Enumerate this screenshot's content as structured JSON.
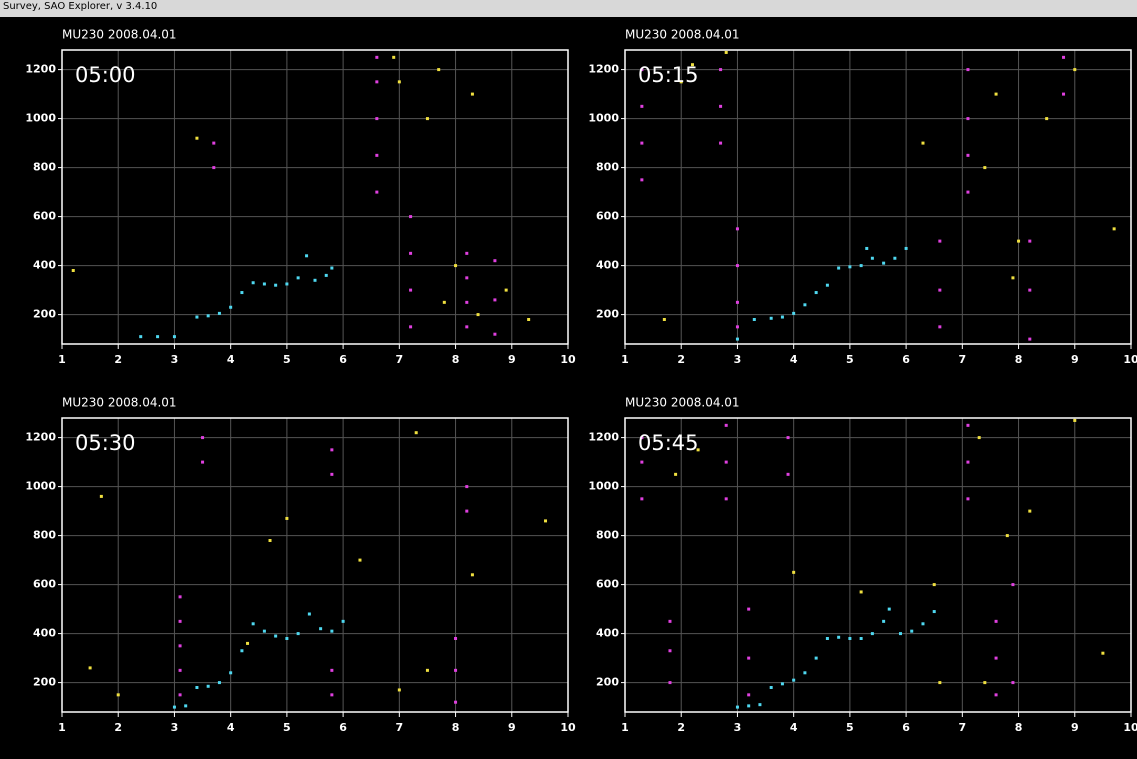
{
  "header": {
    "title": "Survey, SAO Explorer, v 3.4.10"
  },
  "chart_data": [
    {
      "type": "scatter",
      "title": "MU230 2008.04.01",
      "annotation": "05:00",
      "xlim": [
        1,
        10
      ],
      "ylim": [
        80,
        1280
      ],
      "xticks": [
        1,
        2,
        3,
        4,
        5,
        6,
        7,
        8,
        9,
        10
      ],
      "yticks": [
        200,
        400,
        600,
        800,
        1000,
        1200
      ],
      "grid": true,
      "series": [
        {
          "color": "#4fd8f0",
          "x": [
            2.4,
            2.7,
            3.0,
            3.4,
            3.6,
            3.8,
            4.0,
            4.2,
            4.4,
            4.6,
            4.8,
            5.0,
            5.2,
            5.35,
            5.5,
            5.7,
            5.8
          ],
          "y": [
            110,
            110,
            110,
            190,
            195,
            205,
            230,
            290,
            330,
            325,
            320,
            325,
            350,
            440,
            340,
            360,
            390
          ]
        },
        {
          "color": "#e040e0",
          "x": [
            6.6,
            6.6,
            6.6,
            6.6,
            6.6,
            7.2,
            7.2,
            7.2,
            7.2,
            8.2,
            8.2,
            8.2,
            8.2,
            8.7,
            8.7,
            8.7,
            3.7,
            3.7
          ],
          "y": [
            700,
            850,
            1000,
            1150,
            1250,
            150,
            300,
            450,
            600,
            150,
            250,
            350,
            450,
            120,
            260,
            420,
            800,
            900
          ]
        },
        {
          "color": "#f0e040",
          "x": [
            7.0,
            7.5,
            7.8,
            8.0,
            8.4,
            8.9,
            9.3,
            6.9,
            7.7,
            8.3,
            1.2,
            3.4
          ],
          "y": [
            1150,
            1000,
            250,
            400,
            200,
            300,
            180,
            1250,
            1200,
            1100,
            380,
            920
          ]
        }
      ]
    },
    {
      "type": "scatter",
      "title": "MU230 2008.04.01",
      "annotation": "05:15",
      "xlim": [
        1,
        10
      ],
      "ylim": [
        80,
        1280
      ],
      "xticks": [
        1,
        2,
        3,
        4,
        5,
        6,
        7,
        8,
        9,
        10
      ],
      "yticks": [
        200,
        400,
        600,
        800,
        1000,
        1200
      ],
      "grid": true,
      "series": [
        {
          "color": "#4fd8f0",
          "x": [
            3.0,
            3.3,
            3.6,
            3.8,
            4.0,
            4.2,
            4.4,
            4.6,
            4.8,
            5.0,
            5.2,
            5.3,
            5.4,
            5.6,
            5.8,
            6.0
          ],
          "y": [
            100,
            180,
            185,
            190,
            205,
            240,
            290,
            320,
            390,
            395,
            400,
            470,
            430,
            410,
            430,
            470
          ]
        },
        {
          "color": "#e040e0",
          "x": [
            1.3,
            1.3,
            1.3,
            1.3,
            2.7,
            2.7,
            2.7,
            3.0,
            3.0,
            3.0,
            3.0,
            6.6,
            6.6,
            6.6,
            7.1,
            7.1,
            7.1,
            7.1,
            8.2,
            8.2,
            8.2,
            8.8,
            8.8
          ],
          "y": [
            750,
            900,
            1050,
            1200,
            900,
            1050,
            1200,
            150,
            250,
            400,
            550,
            150,
            300,
            500,
            700,
            850,
            1000,
            1200,
            100,
            300,
            500,
            1100,
            1250
          ]
        },
        {
          "color": "#f0e040",
          "x": [
            1.7,
            2.0,
            2.2,
            6.3,
            7.6,
            7.9,
            8.0,
            8.5,
            9.0,
            9.7,
            2.8,
            7.4
          ],
          "y": [
            180,
            1150,
            1220,
            900,
            1100,
            350,
            500,
            1000,
            1200,
            550,
            1270,
            800
          ]
        }
      ]
    },
    {
      "type": "scatter",
      "title": "MU230 2008.04.01",
      "annotation": "05:30",
      "xlim": [
        1,
        10
      ],
      "ylim": [
        80,
        1280
      ],
      "xticks": [
        1,
        2,
        3,
        4,
        5,
        6,
        7,
        8,
        9,
        10
      ],
      "yticks": [
        200,
        400,
        600,
        800,
        1000,
        1200
      ],
      "grid": true,
      "series": [
        {
          "color": "#4fd8f0",
          "x": [
            3.0,
            3.2,
            3.4,
            3.6,
            3.8,
            4.0,
            4.2,
            4.4,
            4.6,
            4.8,
            5.0,
            5.2,
            5.4,
            5.6,
            5.8,
            6.0
          ],
          "y": [
            100,
            105,
            180,
            185,
            200,
            240,
            330,
            440,
            410,
            390,
            380,
            400,
            480,
            420,
            410,
            450
          ]
        },
        {
          "color": "#e040e0",
          "x": [
            3.1,
            3.1,
            3.1,
            3.1,
            3.1,
            3.5,
            3.5,
            5.8,
            5.8,
            5.8,
            5.8,
            8.0,
            8.0,
            8.0,
            8.2,
            8.2
          ],
          "y": [
            150,
            250,
            350,
            450,
            550,
            1200,
            1100,
            150,
            250,
            1050,
            1150,
            120,
            250,
            380,
            900,
            1000
          ]
        },
        {
          "color": "#f0e040",
          "x": [
            1.5,
            1.7,
            2.0,
            4.3,
            4.7,
            5.0,
            6.3,
            7.3,
            7.5,
            8.3,
            9.6,
            7.0
          ],
          "y": [
            260,
            960,
            150,
            360,
            780,
            870,
            700,
            1220,
            250,
            640,
            860,
            170
          ]
        }
      ]
    },
    {
      "type": "scatter",
      "title": "MU230 2008.04.01",
      "annotation": "05:45",
      "xlim": [
        1,
        10
      ],
      "ylim": [
        80,
        1280
      ],
      "xticks": [
        1,
        2,
        3,
        4,
        5,
        6,
        7,
        8,
        9,
        10
      ],
      "yticks": [
        200,
        400,
        600,
        800,
        1000,
        1200
      ],
      "grid": true,
      "series": [
        {
          "color": "#4fd8f0",
          "x": [
            3.0,
            3.2,
            3.4,
            3.6,
            3.8,
            4.0,
            4.2,
            4.4,
            4.6,
            4.8,
            5.0,
            5.2,
            5.4,
            5.6,
            5.7,
            5.9,
            6.1,
            6.3,
            6.5
          ],
          "y": [
            100,
            105,
            110,
            180,
            195,
            210,
            240,
            300,
            380,
            385,
            380,
            380,
            400,
            450,
            500,
            400,
            410,
            440,
            490
          ]
        },
        {
          "color": "#e040e0",
          "x": [
            1.3,
            1.3,
            1.3,
            1.8,
            1.8,
            1.8,
            2.8,
            2.8,
            2.8,
            3.2,
            3.2,
            3.2,
            3.9,
            3.9,
            7.1,
            7.1,
            7.1,
            7.6,
            7.6,
            7.6,
            7.9,
            7.9
          ],
          "y": [
            1100,
            1200,
            950,
            200,
            330,
            450,
            950,
            1100,
            1250,
            150,
            300,
            500,
            1050,
            1200,
            950,
            1100,
            1250,
            150,
            300,
            450,
            600,
            200
          ]
        },
        {
          "color": "#f0e040",
          "x": [
            1.9,
            2.3,
            4.0,
            5.2,
            6.5,
            6.6,
            7.4,
            8.2,
            9.0,
            9.5,
            7.3,
            7.8
          ],
          "y": [
            1050,
            1150,
            650,
            570,
            600,
            200,
            200,
            900,
            1270,
            320,
            1200,
            800
          ]
        }
      ]
    }
  ]
}
